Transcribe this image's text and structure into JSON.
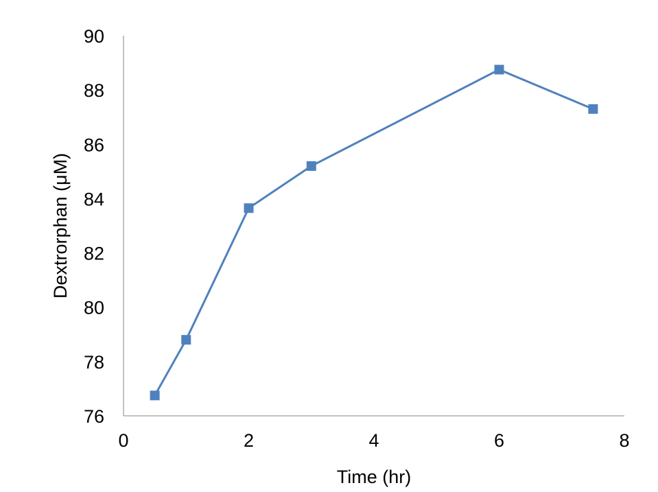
{
  "chart_data": {
    "type": "line",
    "title": "",
    "xlabel": "Time (hr)",
    "ylabel": "Dextrorphan  (μM)",
    "xlim": [
      0,
      8
    ],
    "ylim": [
      76,
      90
    ],
    "xticks": [
      0,
      2,
      4,
      6,
      8
    ],
    "yticks": [
      76,
      78,
      80,
      82,
      84,
      86,
      88,
      90
    ],
    "grid": false,
    "series": [
      {
        "color": "#4F81BD",
        "marker": "square",
        "x": [
          0.5,
          1,
          2,
          3,
          6,
          7.5
        ],
        "y": [
          76.75,
          78.8,
          83.65,
          85.2,
          88.75,
          87.3
        ]
      }
    ]
  }
}
